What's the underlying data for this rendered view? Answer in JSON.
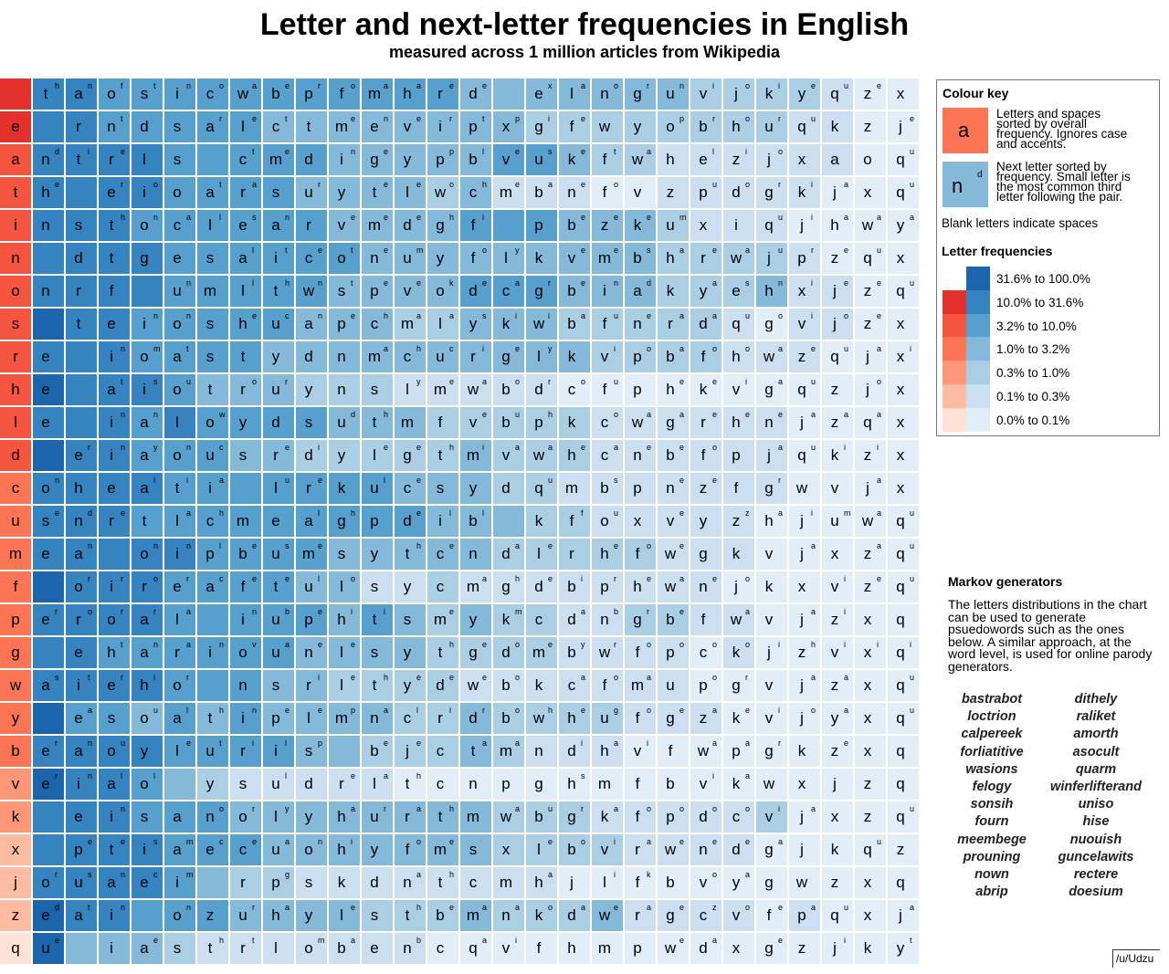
{
  "title": "Letter and next-letter frequencies in English",
  "subtitle": "measured across 1 million articles from Wikipedia",
  "colors": {
    "blue": [
      "#e1edf7",
      "#cbdff0",
      "#aacfe5",
      "#84b9da",
      "#57a0ce",
      "#3584c0",
      "#1a65ab"
    ],
    "red": [
      "#fee2d6",
      "#fdbca2",
      "#fc9777",
      "#fb7555",
      "#f4553f",
      "#e3302a"
    ]
  },
  "legend": {
    "colour_key_title": "Colour key",
    "sample_letter": "a",
    "sample_next": "n",
    "sample_third": "d",
    "letters_text": [
      "Letters and spaces",
      "sorted by overall",
      "frequency. Ignores case",
      "and accents."
    ],
    "next_text": [
      "Next letter sorted by",
      "frequency. Small letter is",
      "the most common third",
      "letter following the pair."
    ],
    "blank_text": "Blank letters indicate spaces",
    "freq_title": "Letter frequencies",
    "bins": [
      "31.6% to 100.0%",
      "10.0% to 31.6%",
      "3.2% to 10.0%",
      "1.0% to 3.2%",
      "0.3% to 1.0%",
      "0.1% to 0.3%",
      "0.0% to 0.1%"
    ]
  },
  "markov": {
    "title": "Markov generators",
    "text": "The letters distributions in the chart can be used to generate psuedowords such as the ones below. A similar approach, at the word level, is used for online parody generators.",
    "words_left": [
      "bastrabot",
      "loctrion",
      "calpereek",
      "forliatitive",
      "wasions",
      "felogy",
      "sonsih",
      "fourn",
      "meembege",
      "prouning",
      "nown",
      "abrip"
    ],
    "words_right": [
      "dithely",
      "raliket",
      "amorth",
      "asocult",
      "quarm",
      "winferlifterand",
      "uniso",
      "hise",
      "nuouish",
      "guncelawits",
      "rectere",
      "doesium"
    ]
  },
  "credit": "/u/Udzu",
  "chart_data": {
    "type": "heatmap",
    "title": "Letter and next-letter frequencies in English",
    "subtitle": "measured across 1 million articles from Wikipedia",
    "bin_labels": [
      "0.0% to 0.1%",
      "0.1% to 0.3%",
      "0.3% to 1.0%",
      "1.0% to 3.2%",
      "3.2% to 10.0%",
      "10.0% to 31.6%",
      "31.6% to 100.0%"
    ],
    "note": "each next entry: first char = next letter (empty = space), second char = most common third letter",
    "rows": [
      {
        "letter": "",
        "level": 5,
        "shades": "554444444444433333332222100",
        "next": [
          "th",
          "an",
          "of",
          "st",
          "in",
          "co",
          "wa",
          "be",
          "pr",
          "fo",
          "ma",
          "ha",
          "re",
          "de",
          "",
          "ex",
          "la",
          "no",
          "gr",
          "un",
          "vi",
          "jo",
          "ki",
          "ye",
          "qu",
          "ze",
          "x"
        ]
      },
      {
        "letter": "e",
        "level": 5,
        "shades": "554444433333333222222221100",
        "next": [
          "",
          "r",
          "nt",
          "d",
          "s",
          "ar",
          "le",
          "ct",
          "t",
          "me",
          "en",
          "ve",
          "ir",
          "pt",
          "xp",
          "gi",
          "fe",
          "w",
          "y",
          "op",
          "br",
          "ho",
          "ur",
          "qu",
          "k",
          "z",
          "je"
        ]
      },
      {
        "letter": "a",
        "level": 4,
        "shades": "555544444333334432211111100",
        "next": [
          "nd",
          "ti",
          "re",
          "l",
          "s",
          "",
          "ct",
          "me",
          "d",
          "in",
          "ge",
          "y",
          "pp",
          "bl",
          "ve",
          "us",
          "ke",
          "ft",
          "wa",
          "h",
          "el",
          "zi",
          "jo",
          "x",
          "a",
          "o",
          "qu"
        ]
      },
      {
        "letter": "t",
        "level": 4,
        "shades": "555544443333231110011111000",
        "next": [
          "he",
          "",
          "er",
          "io",
          "o",
          "at",
          "ra",
          "s",
          "ur",
          "y",
          "te",
          "le",
          "wo",
          "ch",
          "me",
          "ba",
          "ne",
          "fo",
          "v",
          "z",
          "pu",
          "do",
          "gr",
          "ki",
          "ja",
          "x",
          "qu"
        ]
      },
      {
        "letter": "i",
        "level": 4,
        "shades": "555444444333344433321110000",
        "next": [
          "n",
          "s",
          "th",
          "on",
          "ca",
          "ll",
          "es",
          "an",
          "r",
          "ve",
          "me",
          "de",
          "gh",
          "fi",
          "",
          "p",
          "be",
          "ze",
          "ke",
          "um",
          "x",
          "i",
          "qu",
          "ji",
          "ha",
          "wa",
          "ya"
        ]
      },
      {
        "letter": "n",
        "level": 4,
        "shades": "555544444433333333322221000",
        "next": [
          "",
          "d",
          "t",
          "g",
          "e",
          "s",
          "al",
          "it",
          "ce",
          "ot",
          "ne",
          "um",
          "y",
          "fo",
          "ly",
          "k",
          "ve",
          "me",
          "bs",
          "ha",
          "re",
          "wa",
          "ju",
          "pr",
          "ze",
          "qu",
          "x"
        ]
      },
      {
        "letter": "o",
        "level": 4,
        "shades": "555544444333344433322231100",
        "next": [
          "n",
          "r",
          "f",
          "",
          "un",
          "m",
          "ll",
          "th",
          "wn",
          "st",
          "pe",
          "ve",
          "ok",
          "de",
          "ca",
          "gr",
          "be",
          "in",
          "ad",
          "k",
          "ya",
          "es",
          "hn",
          "xi",
          "je",
          "ze",
          "qu"
        ]
      },
      {
        "letter": "s",
        "level": 4,
        "shades": "655444443332233322222101100",
        "next": [
          "",
          "t",
          "e",
          "in",
          "on",
          "s",
          "he",
          "uc",
          "an",
          "pe",
          "ch",
          "ma",
          "la",
          "ys",
          "ki",
          "wi",
          "ba",
          "fu",
          "ne",
          "ra",
          "da",
          "qu",
          "go",
          "vi",
          "jo",
          "ze",
          "x"
        ]
      },
      {
        "letter": "r",
        "level": 4,
        "shades": "555444433333333332222111000",
        "next": [
          "e",
          "",
          "in",
          "om",
          "at",
          "s",
          "t",
          "y",
          "d",
          "n",
          "ma",
          "ch",
          "uc",
          "ri",
          "ge",
          "ly",
          "k",
          "vi",
          "po",
          "ba",
          "fo",
          "ho",
          "wa",
          "ze",
          "qu",
          "ja",
          "xi"
        ]
      },
      {
        "letter": "h",
        "level": 4,
        "shades": "655543332221111100000000000",
        "next": [
          "e",
          "",
          "at",
          "is",
          "ou",
          "t",
          "ro",
          "ur",
          "y",
          "n",
          "s",
          "ly",
          "me",
          "wa",
          "bo",
          "dr",
          "co",
          "fu",
          "p",
          "he",
          "ke",
          "vi",
          "ga",
          "qu",
          "z",
          "jo",
          "x"
        ]
      },
      {
        "letter": "l",
        "level": 4,
        "shades": "555454444333222221111110000",
        "next": [
          "e",
          "",
          "in",
          "an",
          "l",
          "ow",
          "y",
          "d",
          "s",
          "ud",
          "th",
          "m",
          "f",
          "ve",
          "bu",
          "ph",
          "k",
          "co",
          "wa",
          "ga",
          "re",
          "he",
          "ne",
          "ja",
          "za",
          "qa",
          "x"
        ]
      },
      {
        "letter": "d",
        "level": 4,
        "shades": "655444332222232221111110000",
        "next": [
          "",
          "er",
          "in",
          "ay",
          "on",
          "uc",
          "s",
          "re",
          "di",
          "y",
          "le",
          "ge",
          "th",
          "mi",
          "va",
          "wa",
          "he",
          "ca",
          "ne",
          "be",
          "fo",
          "p",
          "ja",
          "qu",
          "ki",
          "zi",
          "x"
        ]
      },
      {
        "letter": "c",
        "level": 3,
        "shades": "555544444443332211111110000",
        "next": [
          "on",
          "h",
          "e",
          "al",
          "ti",
          "ia",
          "",
          "lu",
          "re",
          "k",
          "ul",
          "ce",
          "s",
          "y",
          "d",
          "qu",
          "m",
          "bs",
          "p",
          "ne",
          "ze",
          "f",
          "gr",
          "w",
          "v",
          "ja",
          "x"
        ]
      },
      {
        "letter": "u",
        "level": 3,
        "shades": "555444444444333221111100000",
        "next": [
          "se",
          "nd",
          "re",
          "t",
          "la",
          "ch",
          "m",
          "e",
          "al",
          "gh",
          "p",
          "de",
          "il",
          "bl",
          "",
          "k",
          "ff",
          "ou",
          "x",
          "ve",
          "y",
          "zz",
          "ha",
          "ji",
          "um",
          "wa",
          "qu"
        ]
      },
      {
        "letter": "m",
        "level": 3,
        "shades": "555554444333332222211100000",
        "next": [
          "e",
          "an",
          "",
          "on",
          "in",
          "pl",
          "be",
          "us",
          "me",
          "s",
          "y",
          "th",
          "ce",
          "n",
          "da",
          "le",
          "r",
          "he",
          "fo",
          "we",
          "g",
          "k",
          "v",
          "ja",
          "x",
          "za",
          "qu"
        ]
      },
      {
        "letter": "f",
        "level": 3,
        "shades": "655544443311211111111000000",
        "next": [
          "",
          "or",
          "ir",
          "ro",
          "er",
          "ac",
          "fe",
          "te",
          "ul",
          "lo",
          "s",
          "y",
          "c",
          "ma",
          "gh",
          "de",
          "bi",
          "pr",
          "he",
          "wa",
          "ne",
          "jo",
          "k",
          "x",
          "vi",
          "ze",
          "qu"
        ]
      },
      {
        "letter": "p",
        "level": 3,
        "shades": "555544444343232211221100000",
        "next": [
          "er",
          "ro",
          "or",
          "ar",
          "la",
          "",
          "in",
          "ub",
          "pe",
          "hi",
          "ti",
          "s",
          "me",
          "y",
          "km",
          "c",
          "da",
          "nb",
          "gr",
          "be",
          "f",
          "wa",
          "v",
          "ja",
          "zi",
          "x",
          "q"
        ]
      },
      {
        "letter": "g",
        "level": 3,
        "shades": "554444443333222211110100000",
        "next": [
          "",
          "e",
          "ht",
          "an",
          "ra",
          "in",
          "ov",
          "ua",
          "ne",
          "le",
          "s",
          "y",
          "th",
          "ge",
          "do",
          "me",
          "by",
          "wr",
          "fo",
          "po",
          "co",
          "ko",
          "ji",
          "zh",
          "vi",
          "xi",
          "qi"
        ]
      },
      {
        "letter": "w",
        "level": 3,
        "shades": "555544433222211111110000000",
        "next": [
          "as",
          "it",
          "er",
          "hi",
          "or",
          "",
          "n",
          "s",
          "ri",
          "le",
          "th",
          "ye",
          "de",
          "we",
          "bo",
          "k",
          "ca",
          "fo",
          "ma",
          "u",
          "po",
          "gr",
          "v",
          "ja",
          "za",
          "x",
          "qu"
        ]
      },
      {
        "letter": "y",
        "level": 3,
        "shades": "644343433332232222111000000",
        "next": [
          "",
          "ea",
          "s",
          "ou",
          "al",
          "th",
          "in",
          "pe",
          "le",
          "mp",
          "na",
          "cl",
          "ri",
          "dr",
          "bo",
          "wh",
          "he",
          "ug",
          "fo",
          "ge",
          "za",
          "ke",
          "vi",
          "jo",
          "ya",
          "x",
          "qu"
        ]
      },
      {
        "letter": "b",
        "level": 3,
        "shades": "555544443322232111000000000",
        "next": [
          "er",
          "an",
          "ou",
          "y",
          "le",
          "ut",
          "ri",
          "il",
          "sp",
          "",
          "be",
          "je",
          "c",
          "ta",
          "ma",
          "n",
          "di",
          "ha",
          "vi",
          "f",
          "wa",
          "pa",
          "gr",
          "k",
          "ze",
          "x",
          "q"
        ]
      },
      {
        "letter": "v",
        "level": 2,
        "shades": "655432111110000000000000000",
        "next": [
          "er",
          "in",
          "al",
          "ol",
          "",
          "y",
          "s",
          "ul",
          "d",
          "re",
          "la",
          "th",
          "c",
          "n",
          "p",
          "g",
          "hs",
          "m",
          "f",
          "b",
          "vi",
          "ka",
          "w",
          "x",
          "j",
          "z",
          "q"
        ]
      },
      {
        "letter": "k",
        "level": 2,
        "shades": "555444333333332221111120000",
        "next": [
          "",
          "e",
          "in",
          "s",
          "a",
          "no",
          "or",
          "ly",
          "y",
          "ha",
          "ur",
          "ra",
          "th",
          "m",
          "wa",
          "bu",
          "gr",
          "ka",
          "fo",
          "po",
          "do",
          "co",
          "vi",
          "ja",
          "x",
          "z",
          "qu"
        ]
      },
      {
        "letter": "x",
        "level": 1,
        "shades": "555544433333332222111100000",
        "next": [
          "",
          "pe",
          "te",
          "is",
          "am",
          "ec",
          "ce",
          "ua",
          "on",
          "hi",
          "y",
          "fo",
          "me",
          "s",
          "x",
          "le",
          "bo",
          "vi",
          "ra",
          "we",
          "ne",
          "de",
          "ga",
          "j",
          "k",
          "qu",
          "z"
        ]
      },
      {
        "letter": "j",
        "level": 1,
        "shades": "555543221111111100000000000",
        "next": [
          "or",
          "us",
          "an",
          "ec",
          "im",
          "",
          "r",
          "pg",
          "s",
          "k",
          "d",
          "na",
          "th",
          "c",
          "m",
          "ha",
          "j",
          "li",
          "fk",
          "b",
          "vo",
          "ya",
          "g",
          "w",
          "z",
          "x",
          "q"
        ]
      },
      {
        "letter": "z",
        "level": 1,
        "shades": "655444333322232223111101000",
        "next": [
          "ed",
          "at",
          "in",
          "",
          "on",
          "z",
          "ur",
          "ha",
          "y",
          "le",
          "s",
          "th",
          "be",
          "ma",
          "na",
          "ko",
          "da",
          "we",
          "ra",
          "ge",
          "cz",
          "vo",
          "fe",
          "pa",
          "qu",
          "x",
          "ja"
        ]
      },
      {
        "letter": "q",
        "level": 0,
        "shades": "633321111111000000000000000",
        "next": [
          "ue",
          "",
          "i",
          "ae",
          "s",
          "th",
          "rt",
          "l",
          "om",
          "ba",
          "e",
          "nb",
          "c",
          "qa",
          "vi",
          "f",
          "h",
          "m",
          "p",
          "we",
          "da",
          "x",
          "ge",
          "z",
          "ji",
          "k",
          "yt"
        ]
      }
    ]
  }
}
